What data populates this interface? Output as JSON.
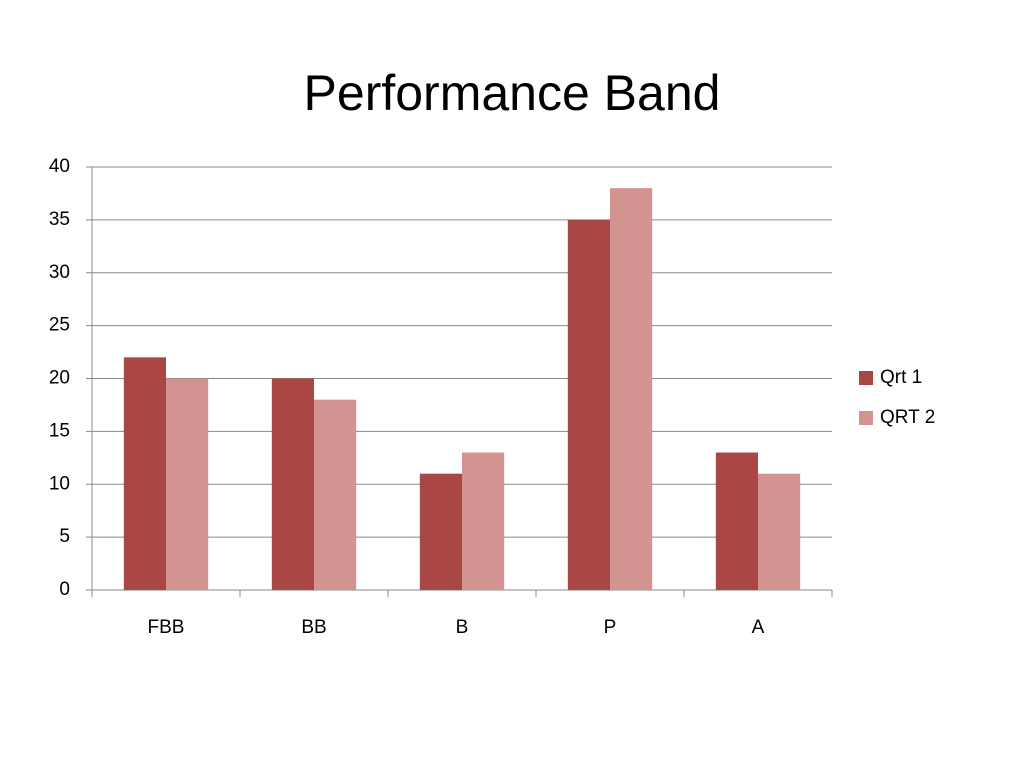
{
  "chart_data": {
    "type": "bar",
    "title": "Performance Band",
    "categories": [
      "FBB",
      "BB",
      "B",
      "P",
      "A"
    ],
    "series": [
      {
        "name": "Qrt 1",
        "color": "#a84744",
        "values": [
          22,
          20,
          11,
          35,
          13
        ]
      },
      {
        "name": "QRT 2",
        "color": "#d39391",
        "values": [
          20,
          18,
          13,
          38,
          11
        ]
      }
    ],
    "ylim": [
      0,
      40
    ],
    "yticks": [
      0,
      5,
      10,
      15,
      20,
      25,
      30,
      35,
      40
    ],
    "grid": true,
    "legend": "right"
  }
}
